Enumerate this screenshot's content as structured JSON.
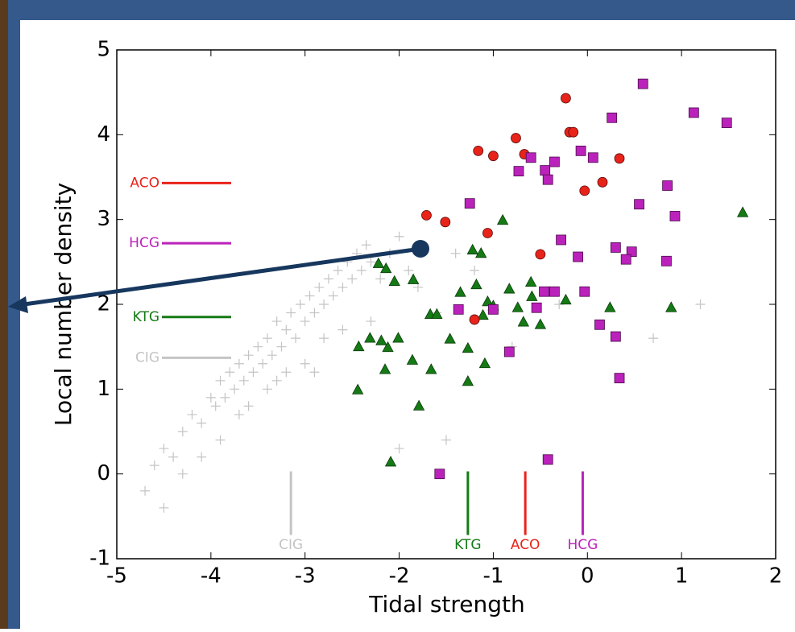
{
  "chart_data": {
    "type": "scatter",
    "xlabel": "Tidal strength",
    "ylabel": "Local number density",
    "xlim": [
      -5,
      2
    ],
    "ylim": [
      -1,
      5
    ],
    "xticks": [
      -5,
      -4,
      -3,
      -2,
      -1,
      0,
      1,
      2
    ],
    "yticks": [
      -1,
      0,
      1,
      2,
      3,
      4,
      5
    ],
    "series": [
      {
        "name": "CIG",
        "color": "#c4c4c4",
        "marker": "plus",
        "median_x": -3.15,
        "median_y": 1.37,
        "x": [
          -4.7,
          -4.6,
          -4.5,
          -4.4,
          -4.3,
          -4.2,
          -4.1,
          -4.0,
          -3.95,
          -3.9,
          -3.85,
          -3.8,
          -3.75,
          -3.7,
          -3.65,
          -3.6,
          -3.55,
          -3.5,
          -3.45,
          -3.4,
          -3.35,
          -3.3,
          -3.25,
          -3.2,
          -3.15,
          -3.1,
          -3.05,
          -3.0,
          -2.95,
          -2.9,
          -2.85,
          -2.8,
          -2.75,
          -2.7,
          -2.65,
          -2.6,
          -2.55,
          -2.5,
          -2.45,
          -2.4,
          -2.35,
          -2.3,
          -2.2,
          -2.1,
          -2.0,
          -1.9,
          -1.8,
          -1.6,
          -1.4,
          -1.2,
          -0.8,
          -0.3,
          0.7,
          1.2,
          -3.6,
          -3.4,
          -3.2,
          -3.0,
          -2.8,
          -2.6,
          -3.9,
          -4.1,
          -2.3,
          -2.9,
          -3.3,
          -3.7,
          -4.3,
          -1.5,
          -4.5,
          -2.0
        ],
        "values": [
          -0.2,
          0.1,
          0.3,
          0.2,
          0.5,
          0.7,
          0.6,
          0.9,
          0.8,
          1.1,
          0.9,
          1.2,
          1.0,
          1.3,
          1.1,
          1.4,
          1.2,
          1.5,
          1.3,
          1.6,
          1.4,
          1.8,
          1.5,
          1.7,
          1.9,
          1.6,
          2.0,
          1.8,
          2.1,
          1.9,
          2.2,
          2.0,
          2.3,
          2.1,
          2.4,
          2.2,
          2.5,
          2.3,
          2.6,
          2.4,
          2.7,
          2.5,
          2.3,
          2.6,
          2.8,
          2.4,
          2.2,
          1.9,
          2.6,
          2.4,
          1.5,
          2.0,
          1.6,
          2.0,
          0.8,
          1.0,
          1.2,
          1.3,
          1.6,
          1.7,
          0.4,
          0.2,
          1.8,
          1.2,
          1.1,
          0.7,
          0.0,
          0.4,
          -0.4,
          0.3
        ]
      },
      {
        "name": "KTG",
        "color": "#157a15",
        "marker": "triangle",
        "median_x": -1.27,
        "median_y": 1.85,
        "x": [
          1.65,
          -0.9,
          -1.22,
          -1.13,
          -2.22,
          -2.14,
          -1.85,
          -2.05,
          -1.35,
          -1.18,
          -0.83,
          -0.6,
          -0.59,
          -0.23,
          -1.06,
          -1.0,
          -1.67,
          -1.6,
          -1.11,
          -0.74,
          0.24,
          0.89,
          -0.68,
          -0.5,
          -1.46,
          -2.31,
          -2.19,
          -2.12,
          -2.01,
          -2.43,
          -1.27,
          -1.86,
          -1.09,
          -2.15,
          -1.66,
          -1.27,
          -2.44,
          -1.79,
          -2.09
        ],
        "values": [
          3.08,
          2.99,
          2.64,
          2.6,
          2.48,
          2.42,
          2.29,
          2.27,
          2.14,
          2.23,
          2.18,
          2.26,
          2.09,
          2.05,
          2.03,
          1.98,
          1.88,
          1.88,
          1.87,
          1.96,
          1.96,
          1.96,
          1.79,
          1.76,
          1.59,
          1.6,
          1.57,
          1.49,
          1.6,
          1.5,
          1.48,
          1.34,
          1.3,
          1.23,
          1.23,
          1.09,
          0.99,
          0.8,
          0.14
        ]
      },
      {
        "name": "ACO",
        "color": "#e8231a",
        "marker": "circle",
        "median_x": -0.66,
        "median_y": 3.43,
        "x": [
          -1.71,
          -1.51,
          -1.16,
          -1.0,
          -0.76,
          -0.67,
          -1.06,
          -0.5,
          -0.23,
          -0.19,
          -0.15,
          0.34,
          0.16,
          -0.03,
          -1.2
        ],
        "values": [
          3.05,
          2.97,
          3.81,
          3.75,
          3.96,
          3.77,
          2.84,
          2.59,
          4.43,
          4.03,
          4.03,
          3.72,
          3.44,
          3.34,
          1.82
        ]
      },
      {
        "name": "HCG",
        "color": "#bb22bb",
        "marker": "square",
        "median_x": -0.05,
        "median_y": 2.72,
        "x": [
          0.59,
          1.13,
          1.48,
          0.26,
          -0.6,
          -0.07,
          0.06,
          -0.35,
          -0.73,
          -0.45,
          -0.42,
          -1.25,
          0.55,
          0.85,
          0.93,
          -0.28,
          -0.1,
          0.3,
          0.47,
          0.41,
          0.84,
          -0.46,
          -0.35,
          -0.03,
          -1.37,
          -1.0,
          -0.54,
          0.13,
          0.3,
          -0.83,
          0.34,
          -1.57,
          -0.42
        ],
        "values": [
          4.6,
          4.26,
          4.14,
          4.2,
          3.73,
          3.81,
          3.73,
          3.68,
          3.57,
          3.58,
          3.47,
          3.19,
          3.18,
          3.4,
          3.04,
          2.76,
          2.56,
          2.67,
          2.62,
          2.53,
          2.51,
          2.15,
          2.15,
          2.15,
          1.94,
          1.94,
          1.96,
          1.76,
          1.62,
          1.44,
          1.13,
          0.0,
          0.17
        ]
      }
    ]
  }
}
